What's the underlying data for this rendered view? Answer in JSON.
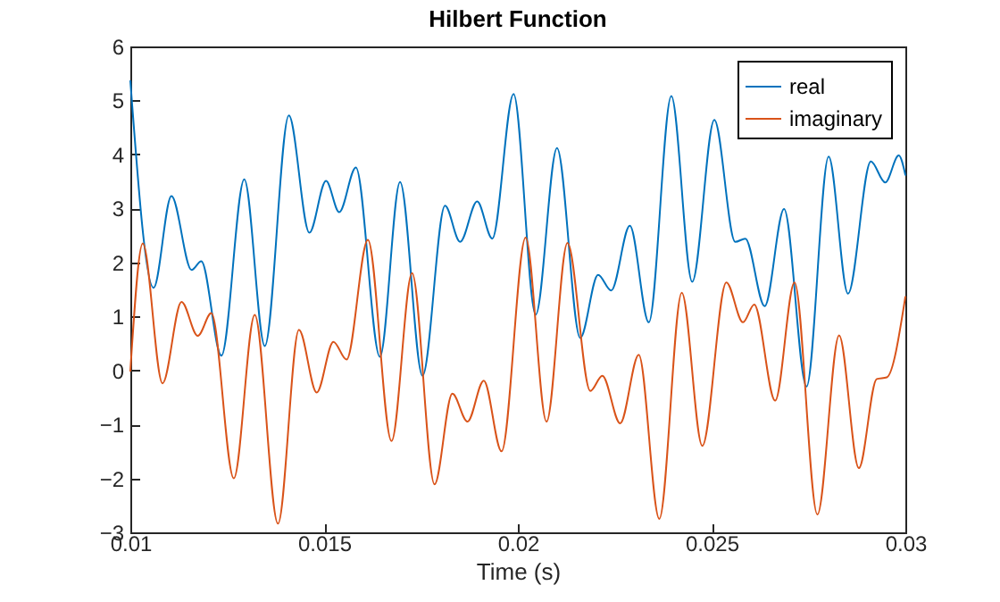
{
  "chart_data": {
    "type": "line",
    "title": "Hilbert Function",
    "xlabel": "Time (s)",
    "xlim": [
      0.01,
      0.03
    ],
    "xticks": [
      0.01,
      0.015,
      0.02,
      0.025,
      0.03
    ],
    "ylim": [
      -3,
      6
    ],
    "yticks": [
      -3,
      -2,
      -1,
      0,
      1,
      2,
      3,
      4,
      5,
      6
    ],
    "legend": "top right",
    "grid": false,
    "series": [
      {
        "name": "real",
        "color": "#0072bd",
        "x": [
          0.01,
          0.0106,
          0.01106,
          0.01158,
          0.01183,
          0.01235,
          0.01294,
          0.01347,
          0.01409,
          0.01462,
          0.01505,
          0.01539,
          0.01582,
          0.01644,
          0.01696,
          0.01754,
          0.01812,
          0.01851,
          0.01895,
          0.01934,
          0.01989,
          0.02046,
          0.02101,
          0.02161,
          0.02207,
          0.02241,
          0.02289,
          0.02338,
          0.02396,
          0.0245,
          0.02507,
          0.02561,
          0.02587,
          0.02637,
          0.02687,
          0.02745,
          0.02802,
          0.02852,
          0.02911,
          0.02948,
          0.02983,
          0.03
        ],
        "values": [
          5.36,
          1.53,
          3.23,
          1.86,
          2.02,
          0.27,
          3.54,
          0.45,
          4.72,
          2.55,
          3.51,
          2.93,
          3.76,
          0.25,
          3.49,
          -0.1,
          3.05,
          2.38,
          3.13,
          2.44,
          5.12,
          1.03,
          4.12,
          0.6,
          1.77,
          1.48,
          2.68,
          0.89,
          5.08,
          1.64,
          4.64,
          2.38,
          2.44,
          1.19,
          2.99,
          -0.3,
          3.96,
          1.42,
          3.87,
          3.48,
          3.98,
          3.62
        ]
      },
      {
        "name": "imaginary",
        "color": "#d95319",
        "x": [
          0.01,
          0.01032,
          0.01083,
          0.01132,
          0.01174,
          0.01209,
          0.01267,
          0.01321,
          0.01381,
          0.01435,
          0.01481,
          0.01524,
          0.01558,
          0.01613,
          0.01674,
          0.01727,
          0.01785,
          0.01831,
          0.0187,
          0.01912,
          0.01958,
          0.0202,
          0.02074,
          0.02128,
          0.02187,
          0.02218,
          0.02264,
          0.02312,
          0.02365,
          0.02423,
          0.02476,
          0.02538,
          0.02581,
          0.0261,
          0.02664,
          0.02714,
          0.02773,
          0.02829,
          0.0288,
          0.02926,
          0.02952,
          0.03
        ],
        "values": [
          -0.01,
          2.35,
          -0.24,
          1.27,
          0.64,
          1.06,
          -2.0,
          1.03,
          -2.84,
          0.75,
          -0.41,
          0.53,
          0.2,
          2.42,
          -1.31,
          1.8,
          -2.11,
          -0.43,
          -0.95,
          -0.19,
          -1.5,
          2.46,
          -0.95,
          2.36,
          -0.38,
          -0.1,
          -0.98,
          0.29,
          -2.75,
          1.44,
          -1.4,
          1.63,
          0.89,
          1.22,
          -0.56,
          1.63,
          -2.67,
          0.65,
          -1.81,
          -0.16,
          -0.13,
          1.36
        ]
      }
    ]
  }
}
